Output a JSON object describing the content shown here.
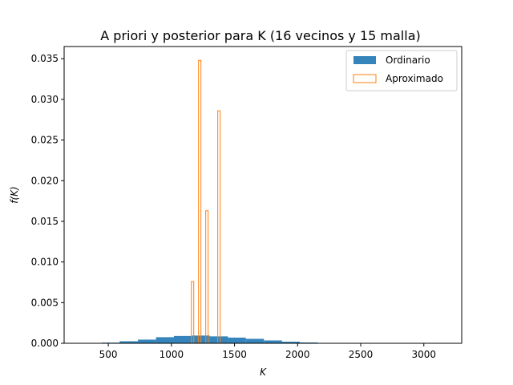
{
  "chart_data": {
    "type": "bar",
    "title": "A priori y posterior para K (16 vecinos y 15 malla)",
    "xlabel": "K",
    "ylabel": "f(K)",
    "xlim": [
      150,
      3300
    ],
    "ylim": [
      0,
      0.0365
    ],
    "grid": false,
    "legend_position": "top-right",
    "x_ticks": [
      500,
      1000,
      1500,
      2000,
      2500,
      3000
    ],
    "y_ticks": [
      0.0,
      0.005,
      0.01,
      0.015,
      0.02,
      0.025,
      0.03,
      0.035
    ],
    "y_tick_labels": [
      "0.000",
      "0.005",
      "0.010",
      "0.015",
      "0.020",
      "0.025",
      "0.030",
      "0.035"
    ],
    "series": [
      {
        "name": "Ordinario",
        "style": "filled",
        "color": "#1f77b4",
        "bins": [
          {
            "x0": 450,
            "x1": 590,
            "value": 8e-05
          },
          {
            "x0": 590,
            "x1": 735,
            "value": 0.00025
          },
          {
            "x0": 735,
            "x1": 878,
            "value": 0.00045
          },
          {
            "x0": 878,
            "x1": 1020,
            "value": 0.00075
          },
          {
            "x0": 1020,
            "x1": 1162,
            "value": 0.0009
          },
          {
            "x0": 1162,
            "x1": 1305,
            "value": 0.00095
          },
          {
            "x0": 1305,
            "x1": 1448,
            "value": 0.00085
          },
          {
            "x0": 1448,
            "x1": 1590,
            "value": 0.0007
          },
          {
            "x0": 1590,
            "x1": 1733,
            "value": 0.00055
          },
          {
            "x0": 1733,
            "x1": 1876,
            "value": 0.00035
          },
          {
            "x0": 1876,
            "x1": 2018,
            "value": 0.0002
          },
          {
            "x0": 2018,
            "x1": 2160,
            "value": 0.0001
          },
          {
            "x0": 2160,
            "x1": 2303,
            "value": 5e-05
          },
          {
            "x0": 2303,
            "x1": 3150,
            "value": 1e-05
          }
        ]
      },
      {
        "name": "Aproximado",
        "style": "outline",
        "color": "#ff7f0e",
        "bins": [
          {
            "x0": 1158,
            "x1": 1177,
            "value": 0.0076
          },
          {
            "x0": 1215,
            "x1": 1234,
            "value": 0.0348
          },
          {
            "x0": 1272,
            "x1": 1291,
            "value": 0.0163
          },
          {
            "x0": 1367,
            "x1": 1386,
            "value": 0.0286
          }
        ]
      }
    ]
  }
}
